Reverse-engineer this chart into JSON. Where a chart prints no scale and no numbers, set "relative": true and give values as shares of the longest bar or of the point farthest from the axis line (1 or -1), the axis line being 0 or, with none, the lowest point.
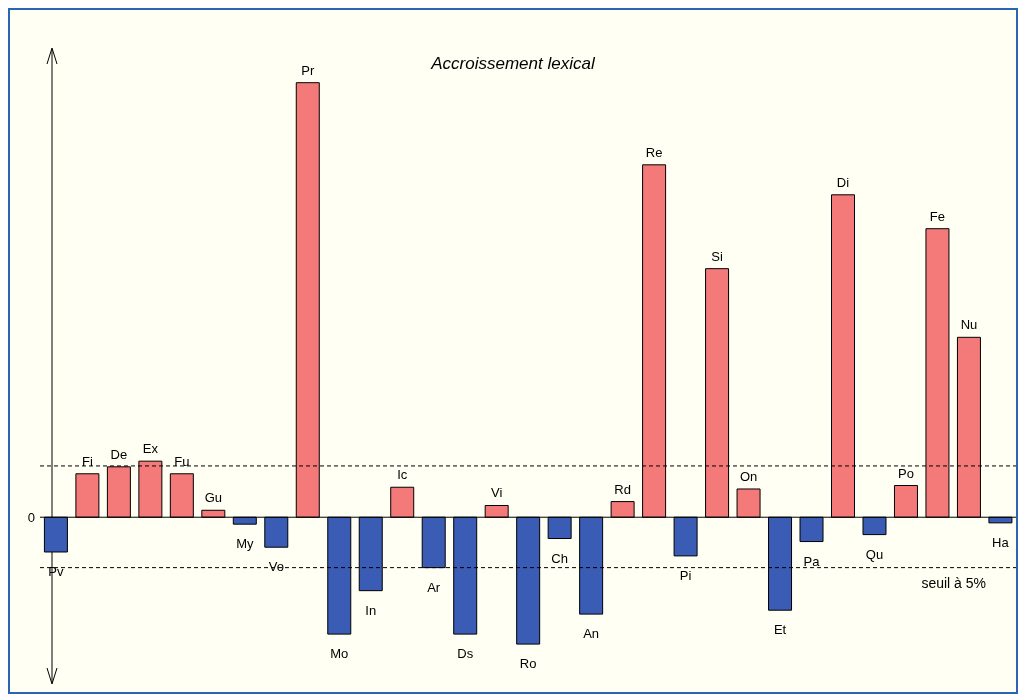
{
  "chart_data": {
    "type": "bar",
    "title": "Accroissement lexical",
    "relative": true,
    "categories": [
      "Pv",
      "Fi",
      "De",
      "Ex",
      "Fu",
      "Gu",
      "My",
      "Vo",
      "Pr",
      "Mo",
      "In",
      "Ic",
      "Ar",
      "Ds",
      "Vi",
      "Ro",
      "Ch",
      "An",
      "Rd",
      "Re",
      "Pi",
      "Si",
      "On",
      "Et",
      "Pa",
      "Di",
      "Qu",
      "Po",
      "Fe",
      "Nu",
      "Ha"
    ],
    "values": [
      -0.08,
      0.1,
      0.116,
      0.129,
      0.1,
      0.016,
      -0.016,
      -0.069,
      1,
      -0.269,
      -0.169,
      0.069,
      -0.116,
      -0.269,
      0.027,
      -0.292,
      -0.049,
      -0.223,
      0.036,
      0.811,
      -0.089,
      0.572,
      0.065,
      -0.214,
      -0.056,
      0.742,
      -0.04,
      0.073,
      0.664,
      0.414,
      -0.013
    ],
    "colors": [
      "#3a5cb5",
      "#f47a7a",
      "#f47a7a",
      "#f47a7a",
      "#f47a7a",
      "#f47a7a",
      "#3a5cb5",
      "#3a5cb5",
      "#f47a7a",
      "#3a5cb5",
      "#3a5cb5",
      "#f47a7a",
      "#3a5cb5",
      "#3a5cb5",
      "#f47a7a",
      "#3a5cb5",
      "#3a5cb5",
      "#3a5cb5",
      "#f47a7a",
      "#f47a7a",
      "#3a5cb5",
      "#f47a7a",
      "#f47a7a",
      "#3a5cb5",
      "#3a5cb5",
      "#f47a7a",
      "#3a5cb5",
      "#f47a7a",
      "#f47a7a",
      "#f47a7a",
      "#3a5cb5"
    ],
    "ref_lines": [
      {
        "axis": "y",
        "value": 0.118,
        "label": null,
        "line_style": "dashed",
        "color": "#000000"
      },
      {
        "axis": "y",
        "value": -0.116,
        "label": "seuil à 5%",
        "line_style": "dashed",
        "color": "#000000"
      }
    ],
    "annotations": [
      "0"
    ]
  }
}
